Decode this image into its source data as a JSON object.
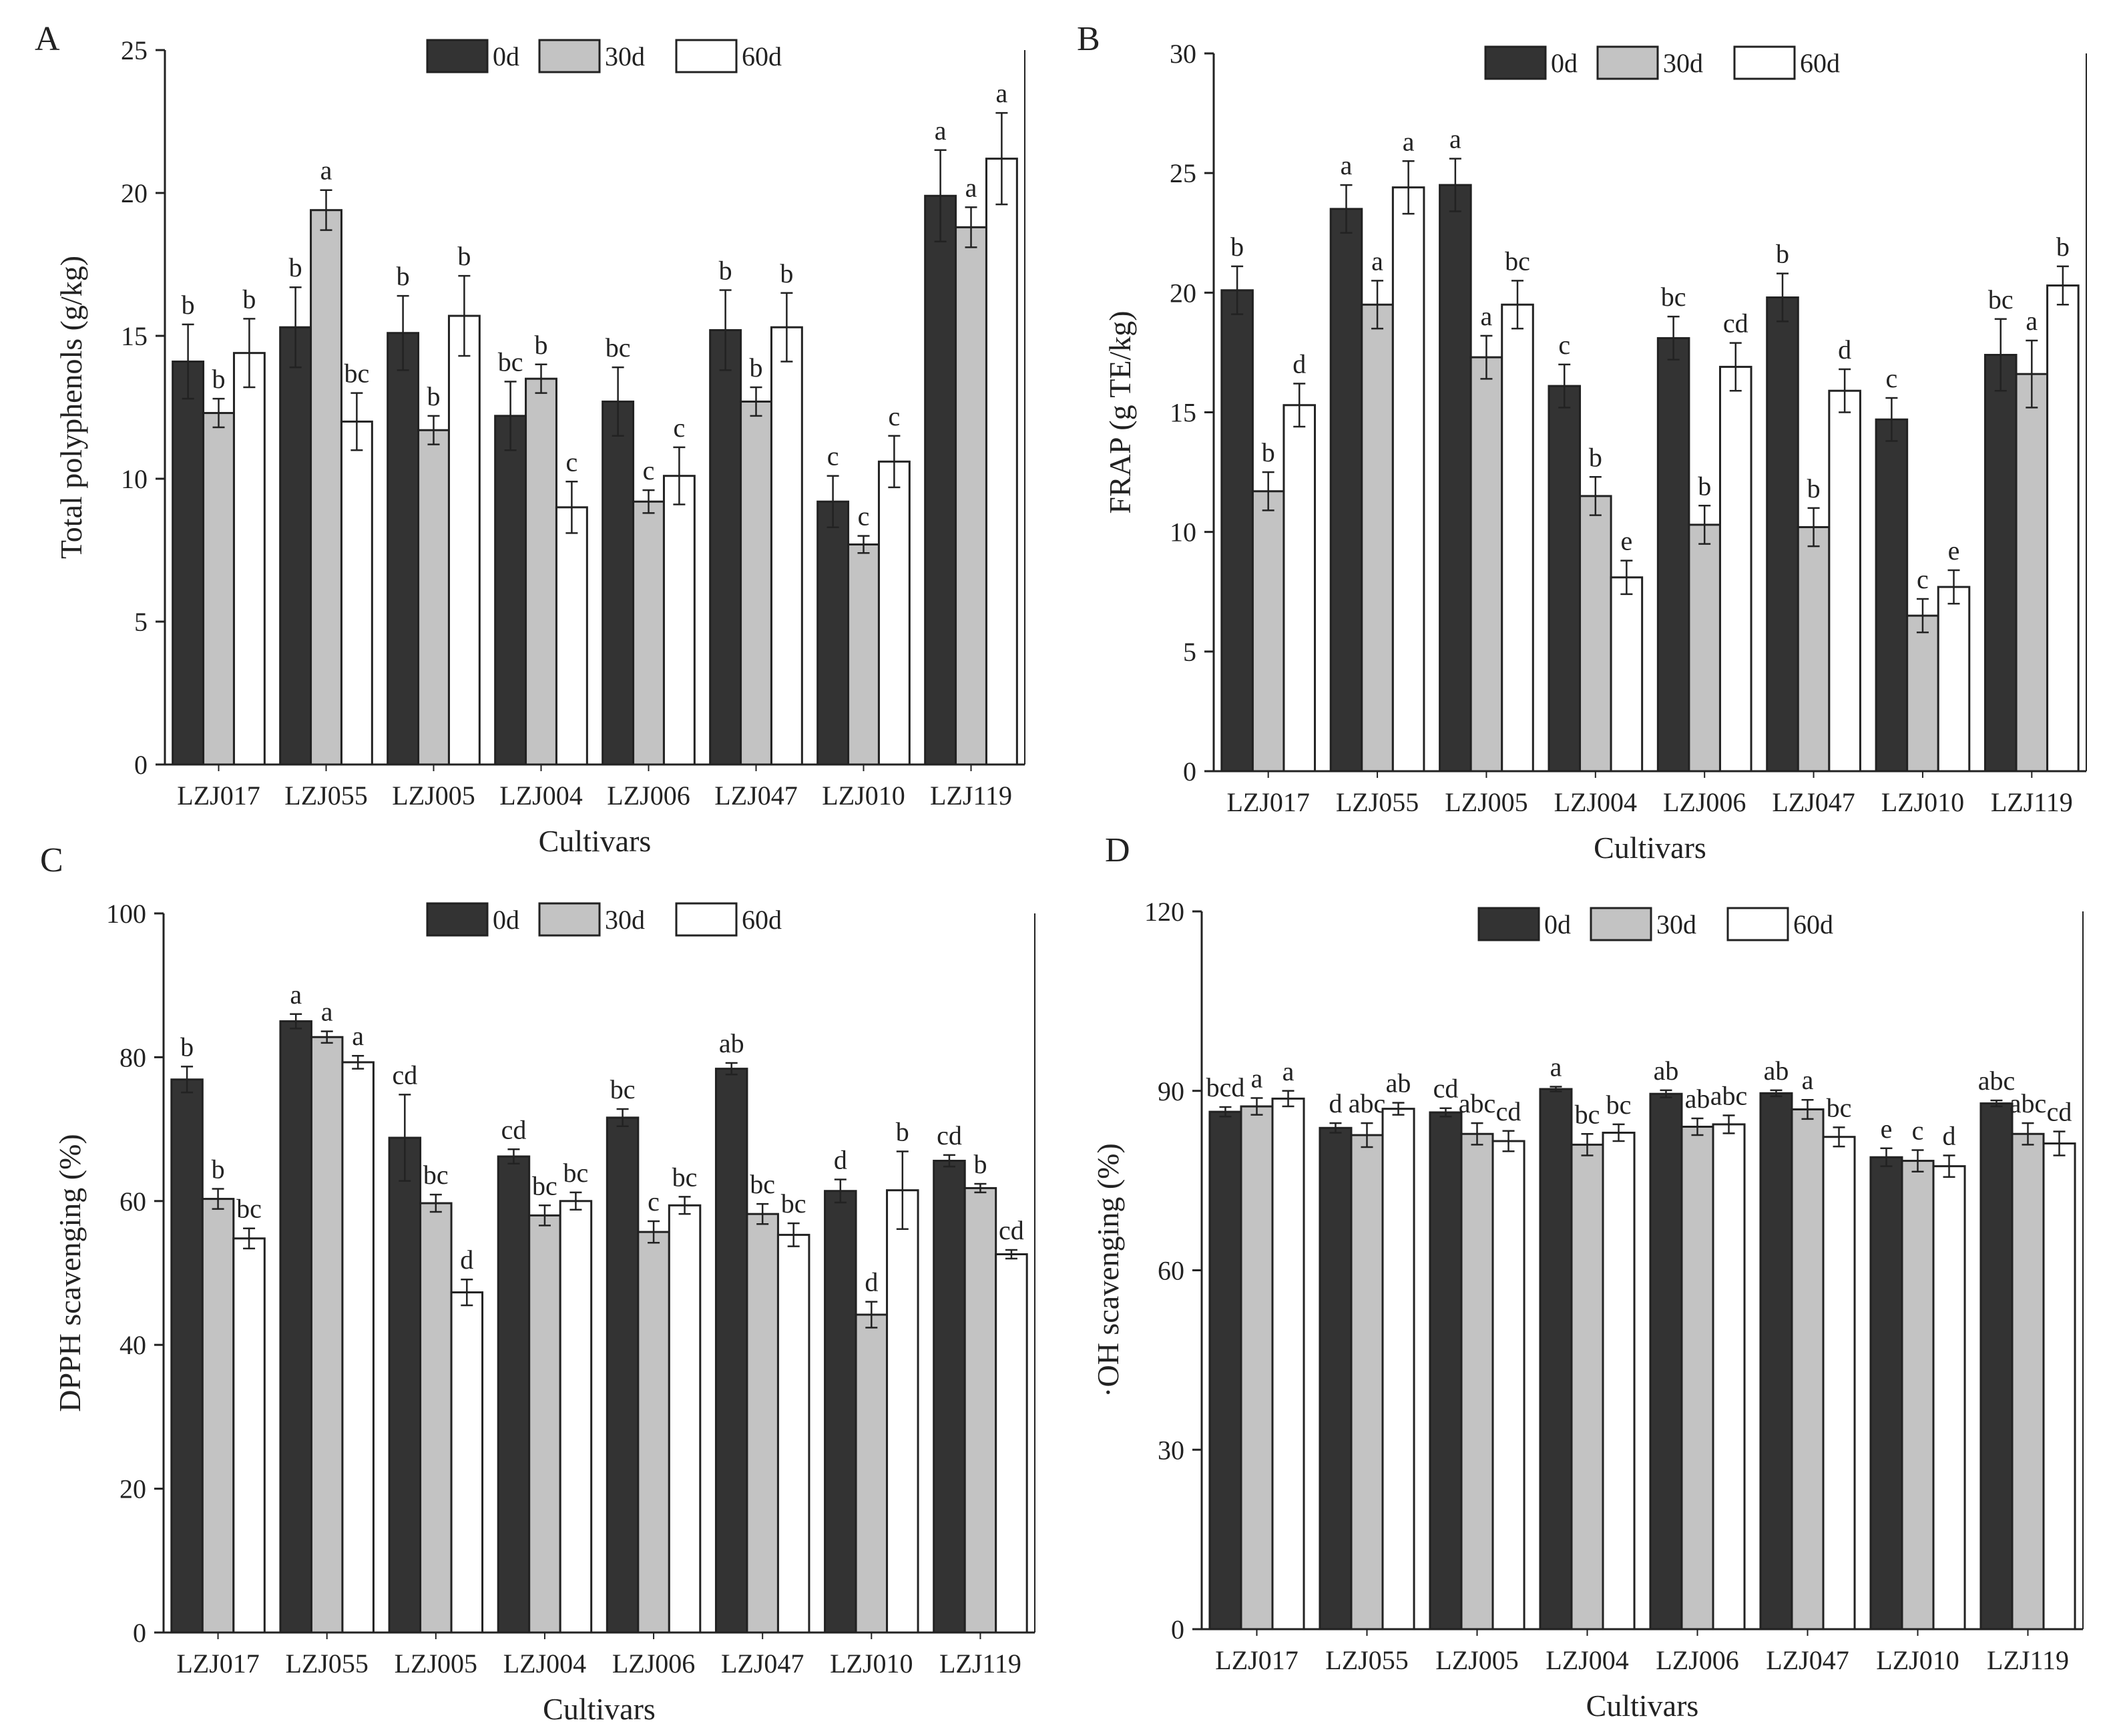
{
  "legend_labels": [
    "0d",
    "30d",
    "60d"
  ],
  "colors": {
    "0d": "#333333",
    "30d": "#c3c3c3",
    "60d": "#ffffff",
    "axis": "#222222"
  },
  "chart_data": [
    {
      "panel": "A",
      "type": "bar",
      "xlabel": "Cultivars",
      "ylabel": "Total polyphenols (g/kg)",
      "ylim": [
        0,
        25
      ],
      "yticks": [
        0,
        5,
        10,
        15,
        20,
        25
      ],
      "categories": [
        "LZJ017",
        "LZJ055",
        "LZJ005",
        "LZJ004",
        "LZJ006",
        "LZJ047",
        "LZJ010",
        "LZJ119"
      ],
      "series": [
        {
          "name": "0d",
          "values": [
            14.1,
            15.3,
            15.1,
            12.2,
            12.7,
            15.2,
            9.2,
            19.9
          ],
          "errors": [
            1.3,
            1.4,
            1.3,
            1.2,
            1.2,
            1.4,
            0.9,
            1.6
          ],
          "letters": [
            "b",
            "b",
            "b",
            "bc",
            "bc",
            "b",
            "c",
            "a"
          ]
        },
        {
          "name": "30d",
          "values": [
            12.3,
            19.4,
            11.7,
            13.5,
            9.2,
            12.7,
            7.7,
            18.8
          ],
          "errors": [
            0.5,
            0.7,
            0.5,
            0.5,
            0.4,
            0.5,
            0.3,
            0.7
          ],
          "letters": [
            "b",
            "a",
            "b",
            "b",
            "c",
            "b",
            "c",
            "a"
          ]
        },
        {
          "name": "60d",
          "values": [
            14.4,
            12.0,
            15.7,
            9.0,
            10.1,
            15.3,
            10.6,
            21.2
          ],
          "errors": [
            1.2,
            1.0,
            1.4,
            0.9,
            1.0,
            1.2,
            0.9,
            1.6
          ],
          "letters": [
            "b",
            "bc",
            "b",
            "c",
            "c",
            "b",
            "c",
            "a"
          ]
        }
      ]
    },
    {
      "panel": "B",
      "type": "bar",
      "xlabel": "Cultivars",
      "ylabel": "FRAP (g TE/kg)",
      "ylim": [
        0,
        30
      ],
      "yticks": [
        0,
        5,
        10,
        15,
        20,
        25,
        30
      ],
      "categories": [
        "LZJ017",
        "LZJ055",
        "LZJ005",
        "LZJ004",
        "LZJ006",
        "LZJ047",
        "LZJ010",
        "LZJ119"
      ],
      "series": [
        {
          "name": "0d",
          "values": [
            20.1,
            23.5,
            24.5,
            16.1,
            18.1,
            19.8,
            14.7,
            17.4
          ],
          "errors": [
            1.0,
            1.0,
            1.1,
            0.9,
            0.9,
            1.0,
            0.9,
            1.5
          ],
          "letters": [
            "b",
            "a",
            "a",
            "c",
            "bc",
            "b",
            "c",
            "bc"
          ]
        },
        {
          "name": "30d",
          "values": [
            11.7,
            19.5,
            17.3,
            11.5,
            10.3,
            10.2,
            6.5,
            16.6
          ],
          "errors": [
            0.8,
            1.0,
            0.9,
            0.8,
            0.8,
            0.8,
            0.7,
            1.4
          ],
          "letters": [
            "b",
            "a",
            "a",
            "b",
            "b",
            "b",
            "c",
            "a"
          ]
        },
        {
          "name": "60d",
          "values": [
            15.3,
            24.4,
            19.5,
            8.1,
            16.9,
            15.9,
            7.7,
            20.3
          ],
          "errors": [
            0.9,
            1.1,
            1.0,
            0.7,
            1.0,
            0.9,
            0.7,
            0.8
          ],
          "letters": [
            "d",
            "a",
            "bc",
            "e",
            "cd",
            "d",
            "e",
            "b"
          ]
        }
      ]
    },
    {
      "panel": "C",
      "type": "bar",
      "xlabel": "Cultivars",
      "ylabel": "DPPH scavenging (%)",
      "ylim": [
        0,
        100
      ],
      "yticks": [
        0,
        20,
        40,
        60,
        80,
        100
      ],
      "categories": [
        "LZJ017",
        "LZJ055",
        "LZJ005",
        "LZJ004",
        "LZJ006",
        "LZJ047",
        "LZJ010",
        "LZJ119"
      ],
      "series": [
        {
          "name": "0d",
          "values": [
            76.9,
            85.0,
            68.8,
            66.2,
            71.6,
            78.4,
            61.4,
            65.6
          ],
          "errors": [
            1.8,
            1.0,
            6.0,
            1.0,
            1.2,
            0.8,
            1.6,
            0.8
          ],
          "letters": [
            "b",
            "a",
            "cd",
            "cd",
            "bc",
            "ab",
            "d",
            "cd"
          ]
        },
        {
          "name": "30d",
          "values": [
            60.3,
            82.8,
            59.7,
            58.0,
            55.7,
            58.2,
            44.2,
            61.8
          ],
          "errors": [
            1.4,
            0.8,
            1.2,
            1.4,
            1.5,
            1.4,
            1.8,
            0.6
          ],
          "letters": [
            "b",
            "a",
            "bc",
            "bc",
            "c",
            "bc",
            "d",
            "b"
          ]
        },
        {
          "name": "60d",
          "values": [
            54.8,
            79.3,
            47.3,
            60.0,
            59.4,
            55.3,
            61.5,
            52.6
          ],
          "errors": [
            1.4,
            0.9,
            1.8,
            1.2,
            1.2,
            1.6,
            5.4,
            0.6
          ],
          "letters": [
            "bc",
            "a",
            "d",
            "bc",
            "bc",
            "bc",
            "b",
            "cd"
          ]
        }
      ]
    },
    {
      "panel": "D",
      "type": "bar",
      "xlabel": "Cultivars",
      "ylabel": "·OH scavenging (%)",
      "ylim": [
        0,
        120
      ],
      "yticks": [
        0,
        30,
        60,
        90,
        120
      ],
      "categories": [
        "LZJ017",
        "LZJ055",
        "LZJ005",
        "LZJ004",
        "LZJ006",
        "LZJ047",
        "LZJ010",
        "LZJ119"
      ],
      "series": [
        {
          "name": "0d",
          "values": [
            86.5,
            83.8,
            86.4,
            90.3,
            89.5,
            89.6,
            78.9,
            87.9
          ],
          "errors": [
            0.8,
            0.8,
            0.7,
            0.4,
            0.6,
            0.5,
            1.5,
            0.5
          ],
          "letters": [
            "bcd",
            "d",
            "cd",
            "a",
            "ab",
            "ab",
            "e",
            "abc"
          ]
        },
        {
          "name": "30d",
          "values": [
            87.4,
            82.6,
            82.8,
            81.0,
            84.0,
            86.9,
            78.3,
            82.8
          ],
          "errors": [
            1.4,
            2.0,
            1.8,
            1.8,
            1.4,
            1.6,
            1.8,
            1.8
          ],
          "letters": [
            "a",
            "abc",
            "abc",
            "bc",
            "ab",
            "a",
            "c",
            "abc"
          ]
        },
        {
          "name": "60d",
          "values": [
            88.7,
            87.0,
            81.6,
            83.0,
            84.4,
            82.3,
            77.4,
            81.2
          ],
          "errors": [
            1.3,
            1.0,
            1.7,
            1.4,
            1.5,
            1.6,
            1.8,
            2.0
          ],
          "letters": [
            "a",
            "ab",
            "cd",
            "bc",
            "abc",
            "bc",
            "d",
            "cd"
          ]
        }
      ]
    }
  ]
}
